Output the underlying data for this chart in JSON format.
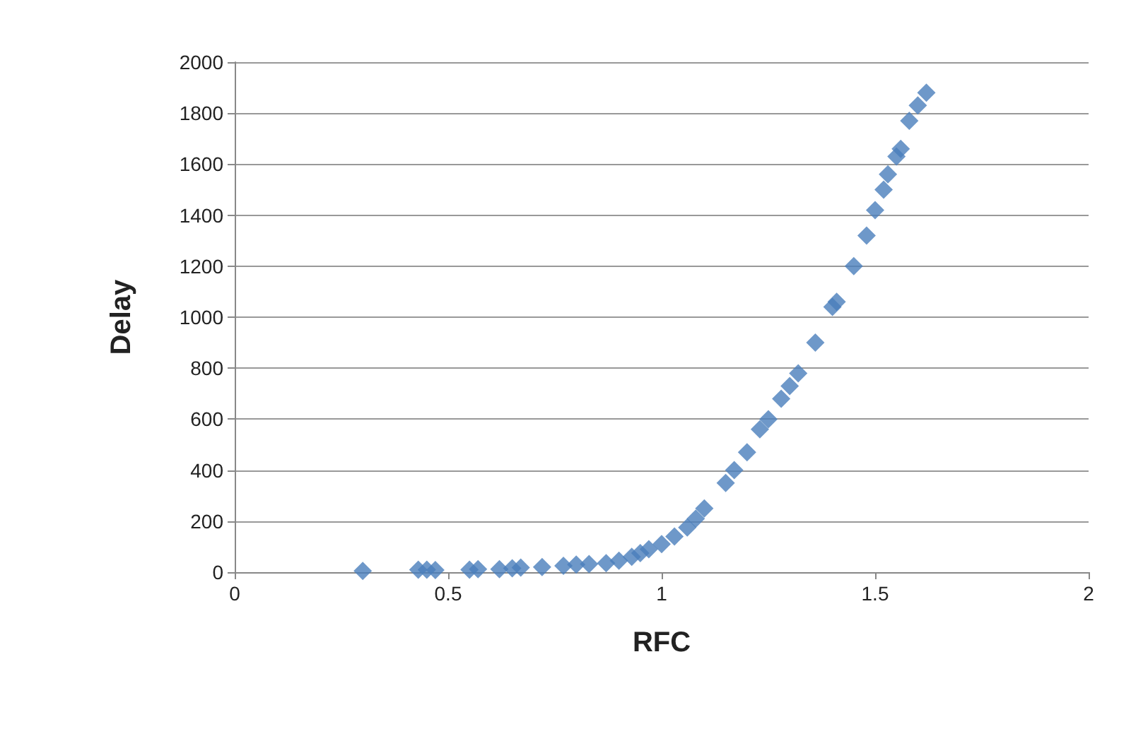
{
  "chart_data": {
    "type": "scatter",
    "xlabel": "RFC",
    "ylabel": "Delay",
    "marker": "diamond",
    "grid": "y",
    "xlim": [
      0,
      2
    ],
    "xticks": [
      0,
      0.5,
      1,
      1.5,
      2
    ],
    "ylim": [
      0,
      2000
    ],
    "yticks": [
      0,
      200,
      400,
      600,
      800,
      1000,
      1200,
      1400,
      1600,
      1800,
      2000
    ],
    "series": [
      {
        "color": "#4a7ebb",
        "x": [
          0.3,
          0.43,
          0.45,
          0.47,
          0.55,
          0.57,
          0.62,
          0.65,
          0.67,
          0.72,
          0.77,
          0.8,
          0.83,
          0.87,
          0.9,
          0.93,
          0.95,
          0.97,
          1.0,
          1.03,
          1.06,
          1.08,
          1.1,
          1.15,
          1.17,
          1.2,
          1.23,
          1.25,
          1.28,
          1.3,
          1.32,
          1.36,
          1.4,
          1.41,
          1.45,
          1.48,
          1.5,
          1.52,
          1.53,
          1.55,
          1.56,
          1.58,
          1.6,
          1.62
        ],
        "values": [
          5,
          10,
          10,
          8,
          10,
          12,
          12,
          15,
          18,
          20,
          25,
          30,
          32,
          35,
          45,
          60,
          75,
          90,
          110,
          140,
          175,
          210,
          250,
          350,
          400,
          470,
          560,
          600,
          680,
          730,
          780,
          900,
          1040,
          1060,
          1200,
          1320,
          1420,
          1500,
          1560,
          1630,
          1660,
          1770,
          1830,
          1880
        ]
      }
    ]
  }
}
